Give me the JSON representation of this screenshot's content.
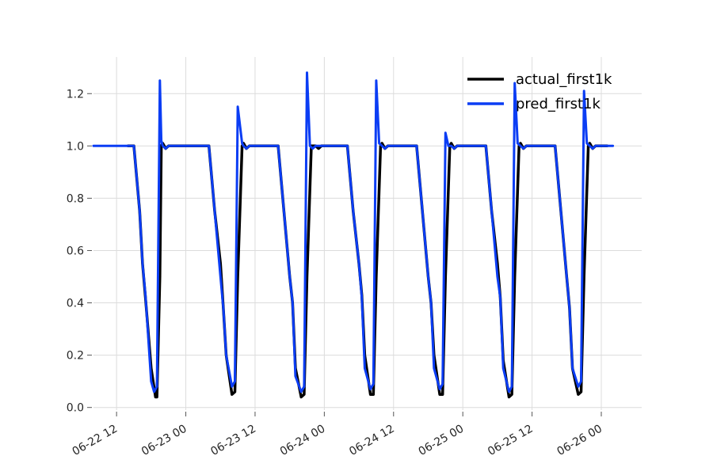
{
  "chart_data": {
    "type": "line",
    "title": "",
    "xlabel": "",
    "ylabel": "",
    "xlim": [
      "2023-06-22 08:00",
      "2023-06-26 07:00"
    ],
    "ylim": [
      -0.01,
      1.34
    ],
    "x_ticks": [
      {
        "value": "2023-06-22 12:00",
        "label": "06-22 12"
      },
      {
        "value": "2023-06-23 00:00",
        "label": "06-23 00"
      },
      {
        "value": "2023-06-23 12:00",
        "label": "06-23 12"
      },
      {
        "value": "2023-06-24 00:00",
        "label": "06-24 00"
      },
      {
        "value": "2023-06-24 12:00",
        "label": "06-24 12"
      },
      {
        "value": "2023-06-25 00:00",
        "label": "06-25 00"
      },
      {
        "value": "2023-06-25 12:00",
        "label": "06-25 12"
      },
      {
        "value": "2023-06-26 00:00",
        "label": "06-26 00"
      }
    ],
    "y_ticks": [
      {
        "value": 0.0,
        "label": "0.0"
      },
      {
        "value": 0.2,
        "label": "0.2"
      },
      {
        "value": 0.4,
        "label": "0.4"
      },
      {
        "value": 0.6,
        "label": "0.6"
      },
      {
        "value": 0.8,
        "label": "0.8"
      },
      {
        "value": 1.0,
        "label": "1.0"
      },
      {
        "value": 1.2,
        "label": "1.2"
      }
    ],
    "grid": true,
    "legend_position": "top-right",
    "series": [
      {
        "name": "actual_first1k",
        "color": "#000000",
        "x": [
          "2023-06-22 14:00",
          "2023-06-22 15:00",
          "2023-06-22 16:00",
          "2023-06-22 16:30",
          "2023-06-22 17:00",
          "2023-06-22 18:00",
          "2023-06-22 18:45",
          "2023-06-22 19:00",
          "2023-06-22 19:30",
          "2023-06-22 19:45",
          "2023-06-22 20:00",
          "2023-06-22 20:30",
          "2023-06-22 21:00",
          "2023-06-22 23:00",
          "2023-06-23 00:00",
          "2023-06-23 03:00",
          "2023-06-23 04:00",
          "2023-06-23 05:00",
          "2023-06-23 06:00",
          "2023-06-23 06:30",
          "2023-06-23 07:00",
          "2023-06-23 08:00",
          "2023-06-23 08:30",
          "2023-06-23 09:00",
          "2023-06-23 09:45",
          "2023-06-23 10:00",
          "2023-06-23 10:30",
          "2023-06-23 11:00",
          "2023-06-23 12:00",
          "2023-06-23 14:00",
          "2023-06-23 16:00",
          "2023-06-23 17:00",
          "2023-06-23 18:00",
          "2023-06-23 18:30",
          "2023-06-23 19:00",
          "2023-06-23 20:00",
          "2023-06-23 20:30",
          "2023-06-23 21:00",
          "2023-06-23 21:45",
          "2023-06-23 22:00",
          "2023-06-23 22:30",
          "2023-06-23 23:00",
          "2023-06-23 23:30",
          "2023-06-24 00:00",
          "2023-06-24 04:00",
          "2023-06-24 05:00",
          "2023-06-24 06:00",
          "2023-06-24 06:30",
          "2023-06-24 07:00",
          "2023-06-24 08:00",
          "2023-06-24 08:30",
          "2023-06-24 09:00",
          "2023-06-24 09:45",
          "2023-06-24 10:00",
          "2023-06-24 10:30",
          "2023-06-24 11:00",
          "2023-06-24 12:00",
          "2023-06-24 16:00",
          "2023-06-24 17:00",
          "2023-06-24 18:00",
          "2023-06-24 18:30",
          "2023-06-24 19:00",
          "2023-06-24 20:00",
          "2023-06-24 20:30",
          "2023-06-24 21:00",
          "2023-06-24 21:45",
          "2023-06-24 22:00",
          "2023-06-24 22:30",
          "2023-06-24 23:00",
          "2023-06-25 00:00",
          "2023-06-25 04:00",
          "2023-06-25 05:00",
          "2023-06-25 06:00",
          "2023-06-25 06:30",
          "2023-06-25 07:00",
          "2023-06-25 08:00",
          "2023-06-25 08:30",
          "2023-06-25 09:00",
          "2023-06-25 09:45",
          "2023-06-25 10:00",
          "2023-06-25 10:30",
          "2023-06-25 11:00",
          "2023-06-25 12:00",
          "2023-06-25 16:00",
          "2023-06-25 17:00",
          "2023-06-25 18:00",
          "2023-06-25 18:30",
          "2023-06-25 19:00",
          "2023-06-25 20:00",
          "2023-06-25 20:30",
          "2023-06-25 21:00",
          "2023-06-25 21:45",
          "2023-06-25 22:00",
          "2023-06-25 22:30",
          "2023-06-25 23:00",
          "2023-06-26 00:00",
          "2023-06-26 01:00"
        ],
        "y": [
          1.0,
          1.0,
          0.75,
          0.55,
          0.42,
          0.15,
          0.04,
          0.04,
          0.5,
          1.0,
          1.01,
          0.99,
          1.0,
          1.0,
          1.0,
          1.0,
          1.0,
          0.75,
          0.55,
          0.38,
          0.2,
          0.05,
          0.06,
          0.5,
          1.0,
          1.01,
          0.99,
          1.0,
          1.0,
          1.0,
          1.0,
          0.75,
          0.5,
          0.4,
          0.15,
          0.04,
          0.05,
          0.5,
          1.0,
          1.0,
          1.0,
          0.99,
          1.0,
          1.0,
          1.0,
          0.75,
          0.55,
          0.43,
          0.2,
          0.05,
          0.05,
          0.5,
          1.0,
          1.01,
          0.99,
          1.0,
          1.0,
          1.0,
          0.75,
          0.5,
          0.4,
          0.2,
          0.05,
          0.05,
          0.5,
          1.0,
          1.01,
          0.99,
          1.0,
          1.0,
          1.0,
          0.75,
          0.55,
          0.42,
          0.18,
          0.04,
          0.05,
          0.5,
          1.0,
          1.01,
          0.99,
          1.0,
          1.0,
          1.0,
          0.75,
          0.5,
          0.38,
          0.15,
          0.05,
          0.06,
          0.5,
          1.0,
          1.01,
          0.99,
          1.0,
          1.0,
          1.0
        ]
      },
      {
        "name": "pred_first1k",
        "color": "#0b3df4",
        "x": [
          "2023-06-22 08:00",
          "2023-06-22 11:00",
          "2023-06-22 14:00",
          "2023-06-22 15:00",
          "2023-06-22 16:00",
          "2023-06-22 16:30",
          "2023-06-22 17:00",
          "2023-06-22 18:00",
          "2023-06-22 18:30",
          "2023-06-22 19:00",
          "2023-06-22 19:30",
          "2023-06-22 19:45",
          "2023-06-22 20:00",
          "2023-06-22 20:30",
          "2023-06-22 21:00",
          "2023-06-22 23:00",
          "2023-06-23 00:00",
          "2023-06-23 03:00",
          "2023-06-23 04:00",
          "2023-06-23 05:00",
          "2023-06-23 06:00",
          "2023-06-23 06:30",
          "2023-06-23 07:00",
          "2023-06-23 08:00",
          "2023-06-23 08:30",
          "2023-06-23 09:00",
          "2023-06-23 09:45",
          "2023-06-23 10:00",
          "2023-06-23 10:30",
          "2023-06-23 11:00",
          "2023-06-23 12:00",
          "2023-06-23 14:00",
          "2023-06-23 16:00",
          "2023-06-23 17:00",
          "2023-06-23 18:00",
          "2023-06-23 18:30",
          "2023-06-23 19:00",
          "2023-06-23 20:00",
          "2023-06-23 20:30",
          "2023-06-23 21:00",
          "2023-06-23 21:30",
          "2023-06-23 22:00",
          "2023-06-23 22:30",
          "2023-06-23 23:00",
          "2023-06-23 23:30",
          "2023-06-24 00:00",
          "2023-06-24 04:00",
          "2023-06-24 05:00",
          "2023-06-24 06:00",
          "2023-06-24 06:30",
          "2023-06-24 07:00",
          "2023-06-24 08:00",
          "2023-06-24 08:30",
          "2023-06-24 09:00",
          "2023-06-24 09:30",
          "2023-06-24 10:00",
          "2023-06-24 10:30",
          "2023-06-24 11:00",
          "2023-06-24 12:00",
          "2023-06-24 16:00",
          "2023-06-24 17:00",
          "2023-06-24 18:00",
          "2023-06-24 18:30",
          "2023-06-24 19:00",
          "2023-06-24 20:00",
          "2023-06-24 20:30",
          "2023-06-24 21:00",
          "2023-06-24 21:30",
          "2023-06-24 22:00",
          "2023-06-24 22:30",
          "2023-06-24 23:00",
          "2023-06-25 00:00",
          "2023-06-25 04:00",
          "2023-06-25 05:00",
          "2023-06-25 06:00",
          "2023-06-25 06:30",
          "2023-06-25 07:00",
          "2023-06-25 08:00",
          "2023-06-25 08:30",
          "2023-06-25 09:00",
          "2023-06-25 09:30",
          "2023-06-25 10:00",
          "2023-06-25 10:30",
          "2023-06-25 11:00",
          "2023-06-25 12:00",
          "2023-06-25 16:00",
          "2023-06-25 17:00",
          "2023-06-25 18:00",
          "2023-06-25 18:30",
          "2023-06-25 19:00",
          "2023-06-25 20:00",
          "2023-06-25 20:30",
          "2023-06-25 21:00",
          "2023-06-25 21:30",
          "2023-06-25 22:00",
          "2023-06-25 22:30",
          "2023-06-25 23:00",
          "2023-06-26 00:00",
          "2023-06-26 02:00"
        ],
        "y": [
          1.0,
          1.0,
          1.0,
          1.0,
          0.75,
          0.55,
          0.43,
          0.1,
          0.06,
          0.08,
          1.25,
          1.02,
          1.0,
          0.99,
          1.0,
          1.0,
          1.0,
          1.0,
          1.0,
          0.75,
          0.5,
          0.38,
          0.2,
          0.08,
          0.1,
          1.15,
          1.01,
          1.0,
          0.99,
          1.0,
          1.0,
          1.0,
          1.0,
          0.75,
          0.5,
          0.4,
          0.12,
          0.06,
          0.08,
          1.28,
          1.0,
          0.99,
          1.0,
          1.0,
          1.0,
          1.0,
          1.0,
          0.75,
          0.55,
          0.42,
          0.15,
          0.07,
          0.09,
          1.25,
          1.01,
          1.0,
          0.99,
          1.0,
          1.0,
          1.0,
          0.75,
          0.5,
          0.4,
          0.15,
          0.07,
          0.09,
          1.05,
          1.0,
          1.0,
          0.99,
          1.0,
          1.0,
          1.0,
          0.75,
          0.5,
          0.42,
          0.15,
          0.06,
          0.08,
          1.24,
          1.01,
          1.0,
          0.99,
          1.0,
          1.0,
          1.0,
          0.75,
          0.5,
          0.38,
          0.15,
          0.08,
          0.1,
          1.21,
          1.01,
          1.0,
          0.99,
          1.0,
          1.0,
          1.0
        ]
      }
    ]
  }
}
